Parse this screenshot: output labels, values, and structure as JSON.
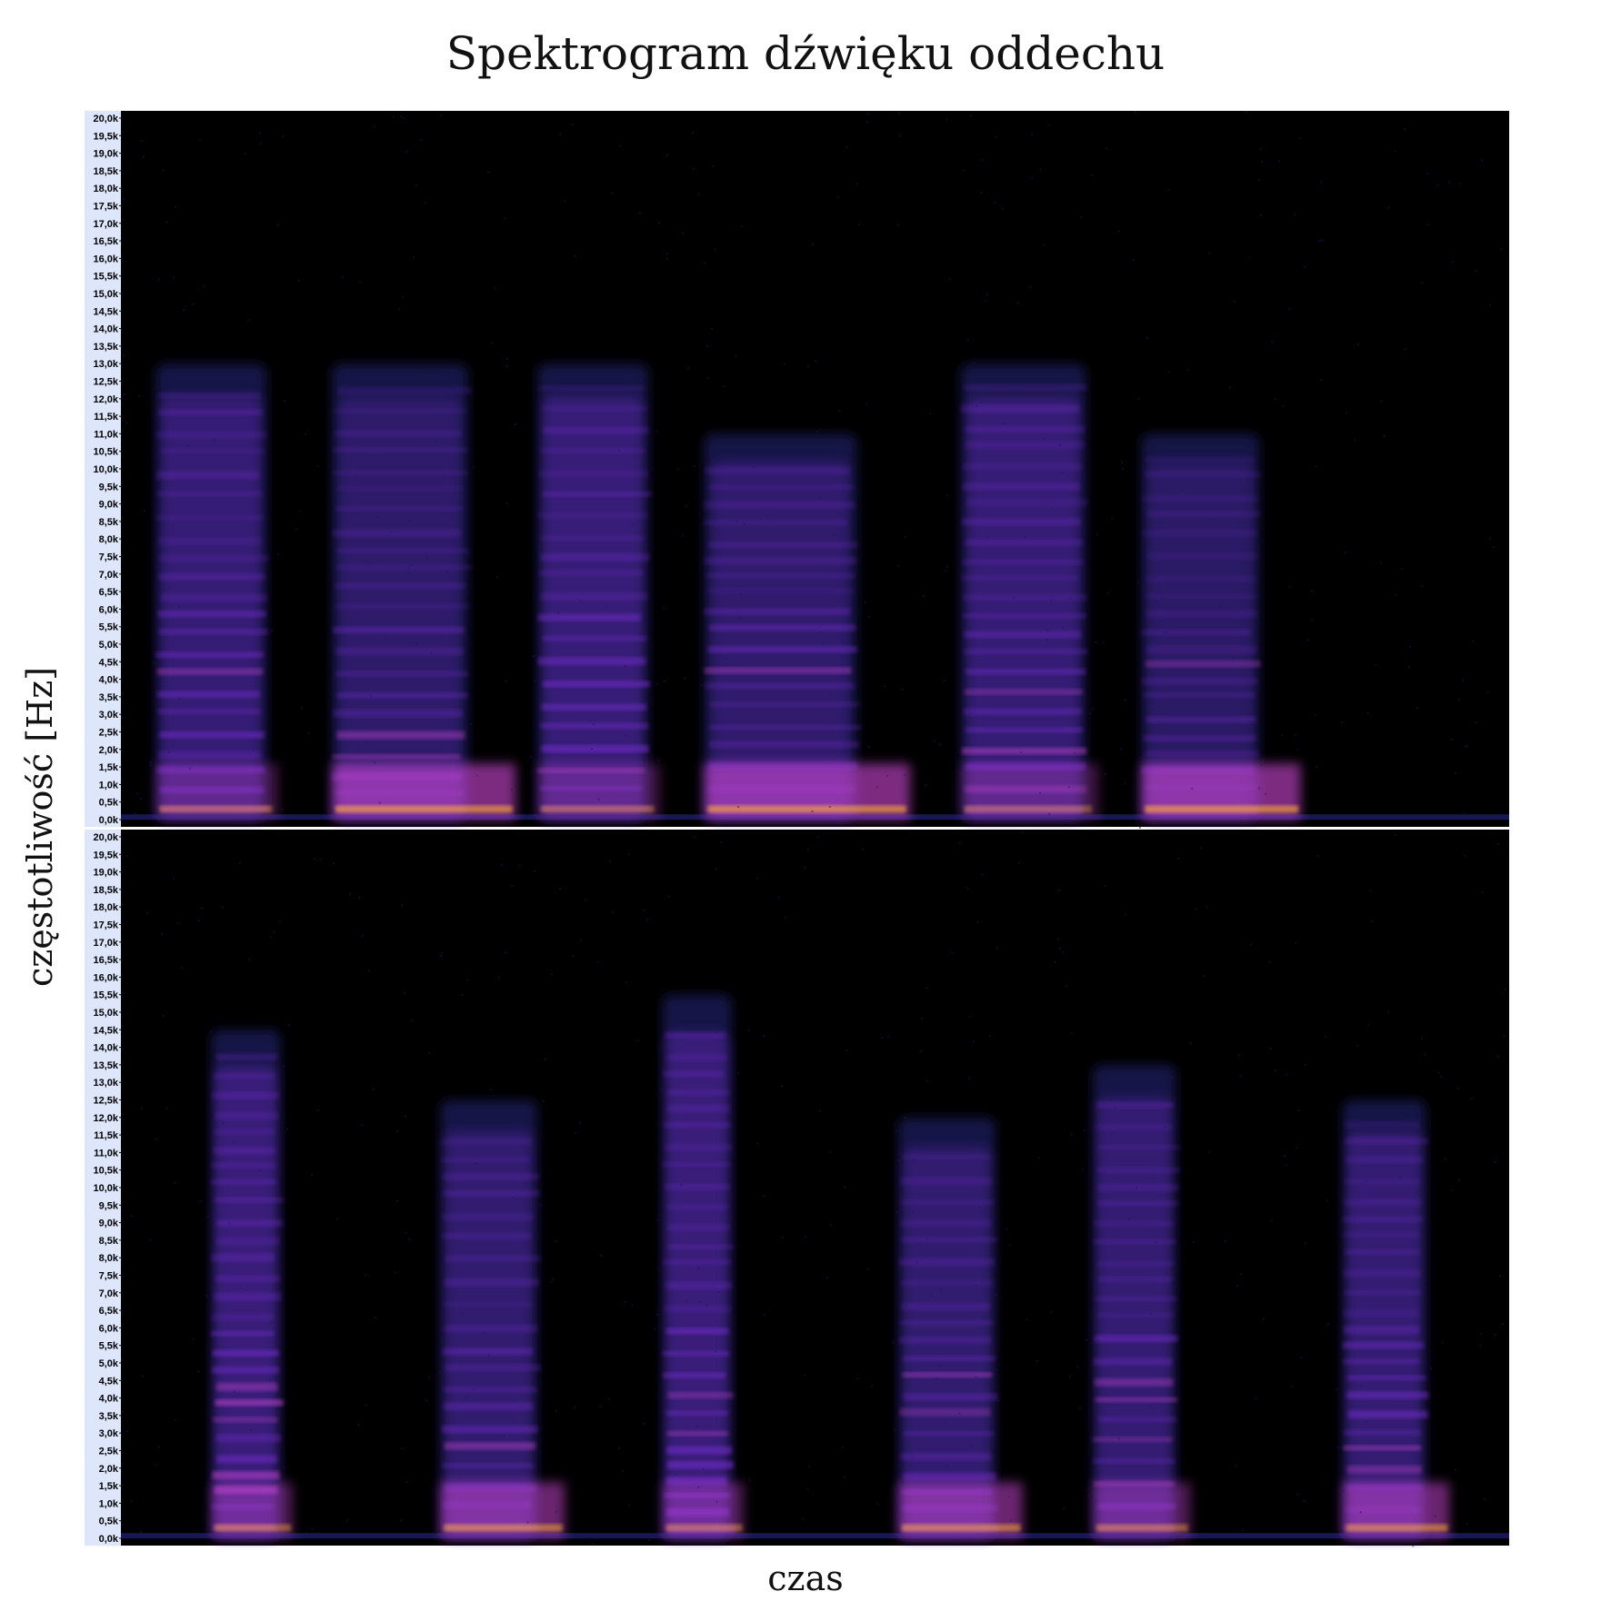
{
  "chart_data": {
    "type": "heatmap",
    "title": "Spektrogram dźwięku oddechu",
    "xlabel": "czas",
    "ylabel": "częstotliwość [Hz]",
    "colors": {
      "background": "#000000",
      "low": "#1a1a5e",
      "mid": "#7b2fd6",
      "high": "#d04ad8",
      "peak": "#ffb030",
      "axis_bg": "#dde6fb"
    },
    "panels": [
      {
        "name": "panel-top",
        "ylim": [
          0,
          20000
        ],
        "ytick_labels": [
          "0,0k",
          "0,5k",
          "1,0k",
          "1,5k",
          "2,0k",
          "2,5k",
          "3,0k",
          "3,5k",
          "4,0k",
          "4,5k",
          "5,0k",
          "5,5k",
          "6,0k",
          "6,5k",
          "7,0k",
          "7,5k",
          "8,0k",
          "8,5k",
          "9,0k",
          "9,5k",
          "10,0k",
          "10,5k",
          "11,0k",
          "11,5k",
          "12,0k",
          "12,5k",
          "13,0k",
          "13,5k",
          "14,0k",
          "14,5k",
          "15,0k",
          "15,5k",
          "16,0k",
          "16,5k",
          "17,0k",
          "17,5k",
          "18,0k",
          "18,5k",
          "19,0k",
          "19,5k",
          "20,0k"
        ],
        "xlim": [
          0,
          1
        ],
        "events": [
          {
            "t0": 0.025,
            "t1": 0.105,
            "fmax": 13000,
            "bright": 0.9,
            "low_boost": 0.3
          },
          {
            "t0": 0.152,
            "t1": 0.25,
            "fmax": 13000,
            "bright": 0.7,
            "low_boost": 1.0
          },
          {
            "t0": 0.3,
            "t1": 0.38,
            "fmax": 13000,
            "bright": 0.95,
            "low_boost": 0.3
          },
          {
            "t0": 0.42,
            "t1": 0.53,
            "fmax": 11000,
            "bright": 0.75,
            "low_boost": 1.0
          },
          {
            "t0": 0.605,
            "t1": 0.695,
            "fmax": 13000,
            "bright": 0.9,
            "low_boost": 0.3
          },
          {
            "t0": 0.735,
            "t1": 0.82,
            "fmax": 11000,
            "bright": 0.6,
            "low_boost": 1.0
          }
        ]
      },
      {
        "name": "panel-bottom",
        "ylim": [
          0,
          20000
        ],
        "ytick_labels": [
          "0,0k",
          "0,5k",
          "1,0k",
          "1,5k",
          "2,0k",
          "2,5k",
          "3,0k",
          "3,5k",
          "4,0k",
          "4,5k",
          "5,0k",
          "5,5k",
          "6,0k",
          "6,5k",
          "7,0k",
          "7,5k",
          "8,0k",
          "8,5k",
          "9,0k",
          "9,5k",
          "10,0k",
          "10,5k",
          "11,0k",
          "11,5k",
          "12,0k",
          "12,5k",
          "13,0k",
          "13,5k",
          "14,0k",
          "14,5k",
          "15,0k",
          "15,5k",
          "16,0k",
          "16,5k",
          "17,0k",
          "17,5k",
          "18,0k",
          "18,5k",
          "19,0k",
          "19,5k",
          "20,0k"
        ],
        "xlim": [
          0,
          1
        ],
        "events": [
          {
            "t0": 0.065,
            "t1": 0.115,
            "fmax": 14500,
            "bright": 1.0,
            "low_boost": 0.5
          },
          {
            "t0": 0.23,
            "t1": 0.3,
            "fmax": 12500,
            "bright": 0.8,
            "low_boost": 0.8
          },
          {
            "t0": 0.39,
            "t1": 0.44,
            "fmax": 15500,
            "bright": 1.0,
            "low_boost": 0.5
          },
          {
            "t0": 0.56,
            "t1": 0.63,
            "fmax": 12000,
            "bright": 0.8,
            "low_boost": 0.8
          },
          {
            "t0": 0.7,
            "t1": 0.76,
            "fmax": 13500,
            "bright": 0.85,
            "low_boost": 0.5
          },
          {
            "t0": 0.88,
            "t1": 0.94,
            "fmax": 12500,
            "bright": 0.85,
            "low_boost": 0.8
          }
        ]
      }
    ]
  }
}
